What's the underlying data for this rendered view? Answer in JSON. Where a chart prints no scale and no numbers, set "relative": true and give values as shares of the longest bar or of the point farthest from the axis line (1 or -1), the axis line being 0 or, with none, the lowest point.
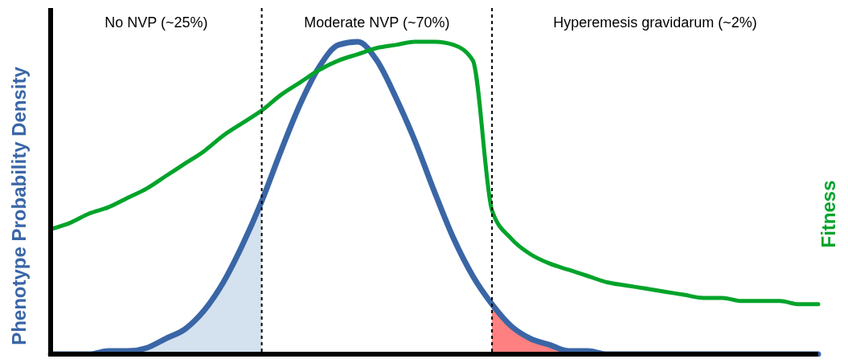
{
  "chart_data": {
    "type": "line",
    "relative": true,
    "ylabel": "Phenotype Probability Density",
    "y2label": "Fitness",
    "categories": [
      null,
      null,
      null,
      null,
      null,
      null,
      null,
      null,
      null,
      null,
      null,
      null,
      null,
      null,
      null,
      null,
      null,
      null,
      null,
      null,
      null,
      null,
      null,
      null,
      null,
      null,
      null,
      null,
      null,
      null,
      null,
      null,
      null,
      null,
      null,
      null,
      null,
      null,
      null,
      null,
      null
    ],
    "series": [
      {
        "type": "area",
        "color": "#d4e1ee",
        "values": [
          0,
          0,
          0,
          0.01,
          0.01,
          0.02,
          0.05,
          0.08,
          0.14,
          0.23,
          0.35,
          0.49,
          null,
          null,
          null,
          null,
          null,
          null,
          null,
          null,
          null,
          null,
          null,
          null,
          null,
          null,
          null,
          null,
          null,
          null,
          null,
          null,
          null,
          null,
          null,
          null,
          null,
          null,
          null,
          null,
          null
        ]
      },
      {
        "type": "area",
        "color": "#ff8080",
        "values": [
          null,
          null,
          null,
          null,
          null,
          null,
          null,
          null,
          null,
          null,
          null,
          null,
          null,
          null,
          null,
          null,
          null,
          null,
          null,
          null,
          null,
          null,
          null,
          0.16,
          0.09,
          0.05,
          0.03,
          0.01,
          0.01,
          0,
          0,
          0,
          0,
          0,
          0,
          0,
          0,
          0,
          0,
          0,
          0
        ]
      },
      {
        "color": "#3a66a6",
        "values": [
          0,
          0,
          0,
          0.01,
          0.01,
          0.02,
          0.05,
          0.08,
          0.14,
          0.23,
          0.35,
          0.49,
          0.65,
          0.8,
          0.92,
          0.99,
          1,
          0.94,
          0.82,
          0.68,
          0.52,
          0.37,
          0.25,
          0.16,
          0.09,
          0.05,
          0.03,
          0.01,
          0.01,
          0,
          0,
          0,
          0,
          0,
          0,
          0,
          0,
          0,
          0,
          0,
          0
        ]
      },
      {
        "color": "#00a32a",
        "values": [
          0.4,
          0.42,
          0.45,
          0.47,
          0.5,
          0.53,
          0.57,
          0.61,
          0.65,
          0.7,
          0.74,
          0.78,
          0.83,
          0.87,
          0.91,
          0.94,
          0.96,
          0.98,
          0.99,
          1,
          1,
          0.99,
          0.94,
          0.46,
          0.37,
          0.32,
          0.29,
          0.27,
          0.25,
          0.23,
          0.22,
          0.21,
          0.2,
          0.19,
          0.18,
          0.18,
          0.17,
          0.17,
          0.17,
          0.16,
          0.16
        ]
      }
    ],
    "annotations": [
      "No NVP (~25%)",
      "Moderate NVP (~70%)",
      "Hyperemesis gravidarum (~2%)"
    ]
  }
}
